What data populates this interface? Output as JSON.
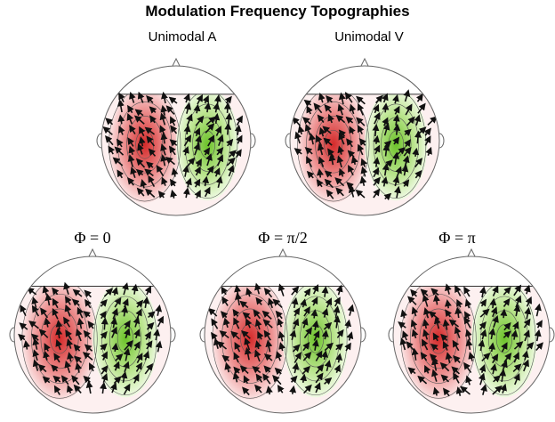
{
  "title": "Modulation Frequency Topographies",
  "panels": [
    {
      "label": "Unimodal A"
    },
    {
      "label": "Unimodal V"
    },
    {
      "label": "Φ = 0"
    },
    {
      "label": "Φ = π/2"
    },
    {
      "label": "Φ = π"
    }
  ]
}
